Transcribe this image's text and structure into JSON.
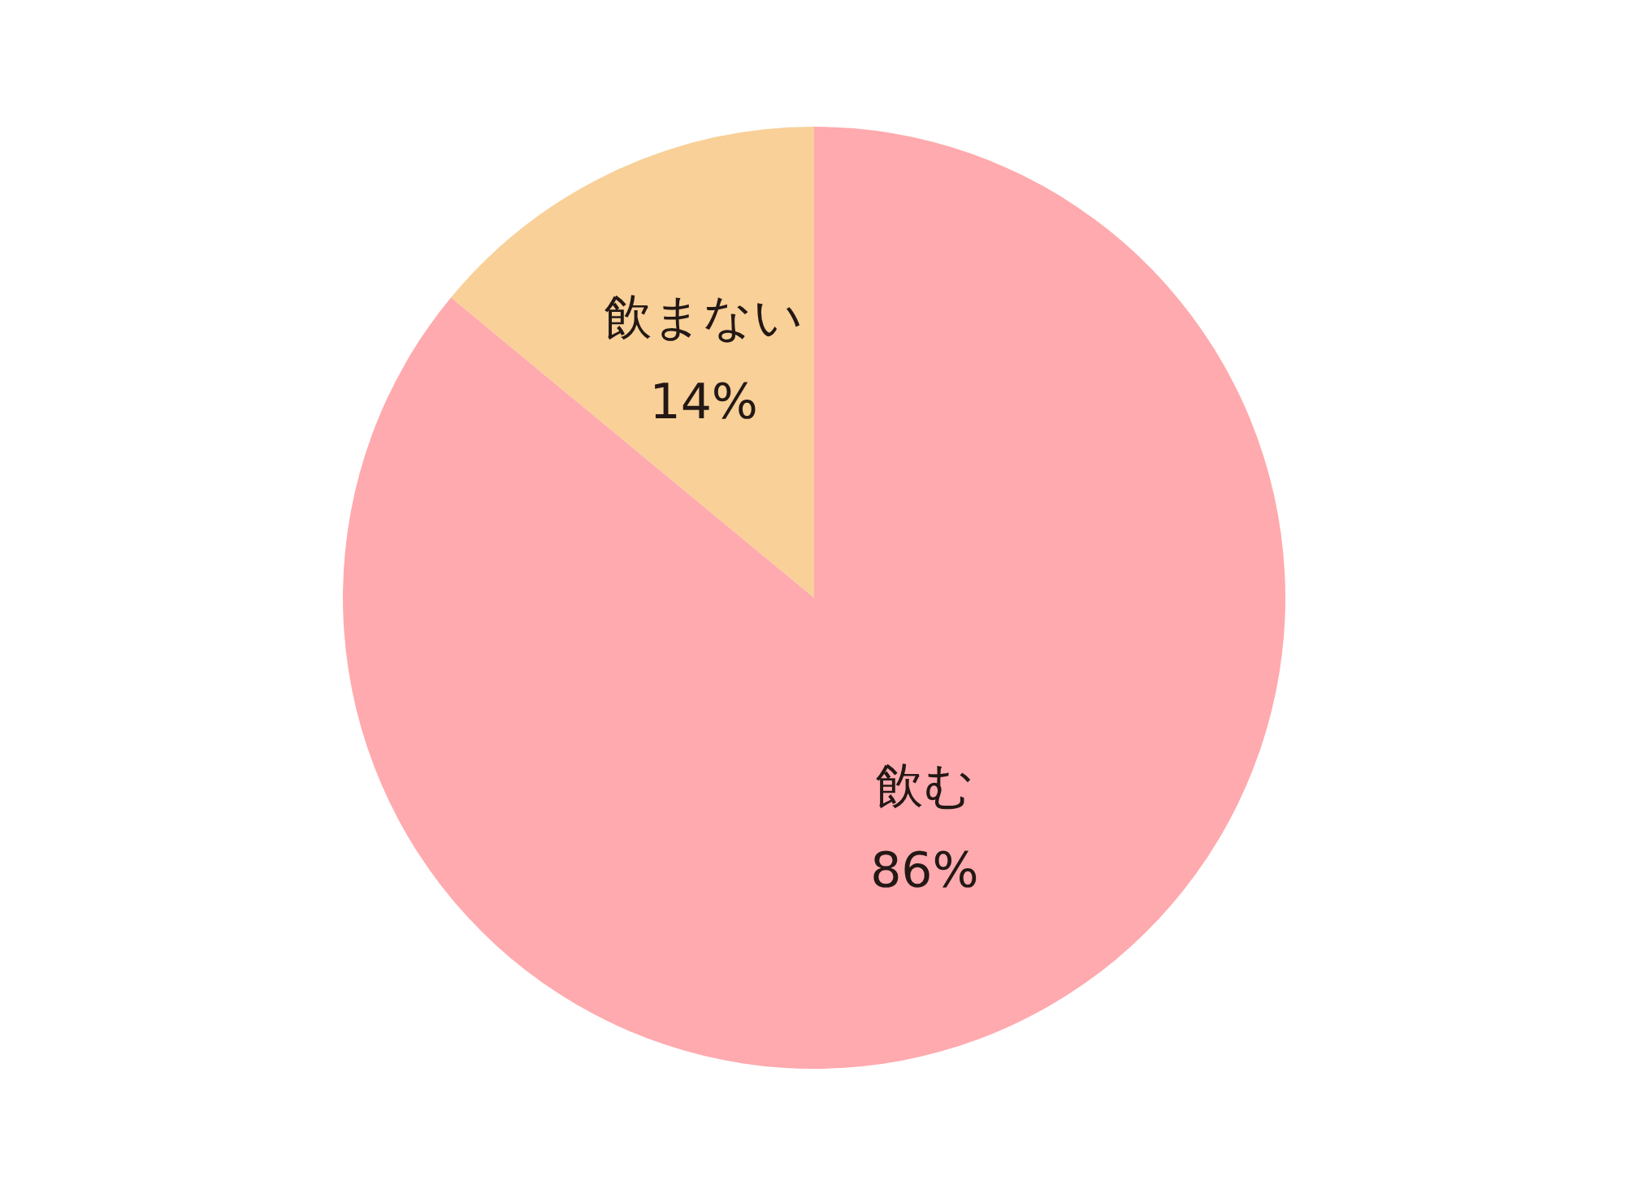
{
  "chart_data": {
    "type": "pie",
    "categories": [
      "飲む",
      "飲まない"
    ],
    "values": [
      86,
      14
    ],
    "value_labels": [
      "86%",
      "14%"
    ],
    "colors": [
      "#ffaaae",
      "#f8d098"
    ],
    "legend": false
  }
}
